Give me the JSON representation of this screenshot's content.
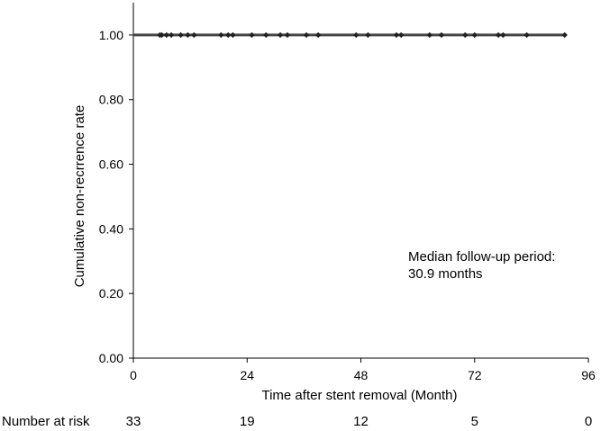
{
  "chart_data": {
    "type": "line",
    "title": "",
    "xlabel": "Time after stent removal (Month)",
    "ylabel": "Cumulative non-recrrence rate",
    "xlim": [
      0,
      96
    ],
    "ylim": [
      0,
      1.1
    ],
    "xticks": [
      0,
      24,
      48,
      72,
      96
    ],
    "xtick_labels": [
      "0",
      "24",
      "48",
      "72",
      "96"
    ],
    "yticks": [
      0,
      0.2,
      0.4,
      0.6,
      0.8,
      1.0
    ],
    "ytick_labels": [
      "0.00",
      "0.20",
      "0.40",
      "0.60",
      "0.80",
      "1.00"
    ],
    "grid": false,
    "series": [
      {
        "x": [
          0,
          91
        ],
        "y": [
          1.0,
          1.0
        ],
        "censored_x": [
          5.6,
          6.0,
          7.0,
          8.0,
          10.0,
          11.5,
          12.8,
          18.5,
          20.0,
          21.0,
          25.0,
          28.0,
          31.0,
          32.5,
          36.5,
          39.0,
          47.0,
          49.5,
          55.5,
          56.5,
          62.5,
          65.0,
          70.0,
          72.0,
          77.0,
          78.0,
          83.0,
          91.0
        ]
      }
    ],
    "annotation": {
      "line1": "Median follow-up period:",
      "line2": "30.9 months"
    },
    "risk_table": {
      "label": "Number at risk",
      "times": [
        0,
        24,
        48,
        72,
        96
      ],
      "counts": [
        "33",
        "19",
        "12",
        "5",
        "0"
      ]
    }
  }
}
